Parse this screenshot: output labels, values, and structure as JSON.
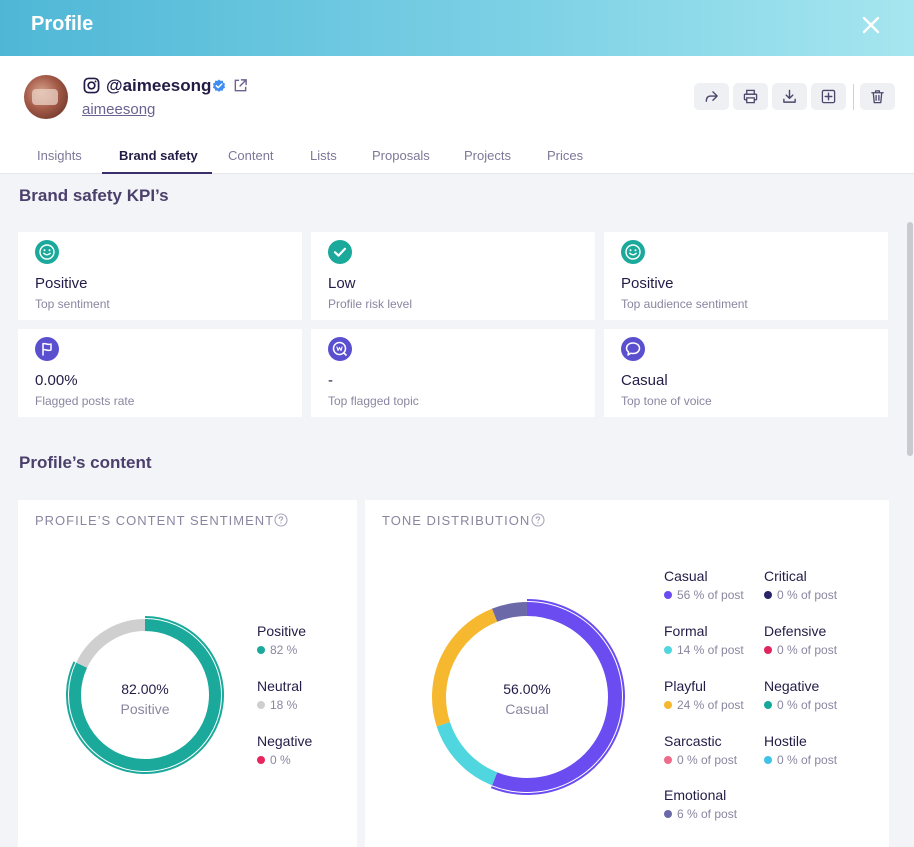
{
  "header": {
    "title": "Profile"
  },
  "profile": {
    "handle": "@aimeesong",
    "username": "aimeesong"
  },
  "tabs": [
    "Insights",
    "Brand safety",
    "Content",
    "Lists",
    "Proposals",
    "Projects",
    "Prices"
  ],
  "kpi_section": {
    "title": "Brand safety KPI’s"
  },
  "kpis": [
    {
      "value": "Positive",
      "label": "Top sentiment",
      "icon": "smile-icon",
      "color": "#1aa99b"
    },
    {
      "value": "Low",
      "label": "Profile risk level",
      "icon": "check-icon",
      "color": "#1aa99b"
    },
    {
      "value": "Positive",
      "label": "Top audience sentiment",
      "icon": "smile-icon",
      "color": "#1aa99b"
    },
    {
      "value": "0.00%",
      "label": "Flagged posts rate",
      "icon": "flag-icon",
      "color": "#5a4fcf"
    },
    {
      "value": "-",
      "label": "Top flagged topic",
      "icon": "topic-icon",
      "color": "#5a4fcf"
    },
    {
      "value": "Casual",
      "label": "Top tone of voice",
      "icon": "chat-icon",
      "color": "#5a4fcf"
    }
  ],
  "content_section": {
    "title": "Profile’s content"
  },
  "sentiment_card": {
    "title": "PROFILE’S CONTENT SENTIMENT",
    "center_value": "82.00%",
    "center_label": "Positive",
    "legend": [
      {
        "name": "Positive",
        "pct": "82 %",
        "color": "#1aa99b",
        "value": 82
      },
      {
        "name": "Neutral",
        "pct": "18 %",
        "color": "#cfcfcf",
        "value": 18
      },
      {
        "name": "Negative",
        "pct": "0 %",
        "color": "#e8255f",
        "value": 0
      }
    ]
  },
  "tone_card": {
    "title": "TONE DISTRIBUTION",
    "center_value": "56.00%",
    "center_label": "Casual",
    "legend": [
      {
        "name": "Casual",
        "pct": "56 % of post",
        "color": "#6a4cf0",
        "value": 56
      },
      {
        "name": "Formal",
        "pct": "14 % of post",
        "color": "#4fd6df",
        "value": 14
      },
      {
        "name": "Playful",
        "pct": "24 % of post",
        "color": "#f5b82e",
        "value": 24
      },
      {
        "name": "Sarcastic",
        "pct": "0 % of post",
        "color": "#f06a8c",
        "value": 0
      },
      {
        "name": "Emotional",
        "pct": "6 % of post",
        "color": "#6b69a8",
        "value": 6
      },
      {
        "name": "Critical",
        "pct": "0 % of post",
        "color": "#2a2466",
        "value": 0
      },
      {
        "name": "Defensive",
        "pct": "0 % of post",
        "color": "#e0245e",
        "value": 0
      },
      {
        "name": "Negative",
        "pct": "0 % of post",
        "color": "#15a89a",
        "value": 0
      },
      {
        "name": "Hostile",
        "pct": "0 % of post",
        "color": "#3cc3e6",
        "value": 0
      }
    ]
  }
}
